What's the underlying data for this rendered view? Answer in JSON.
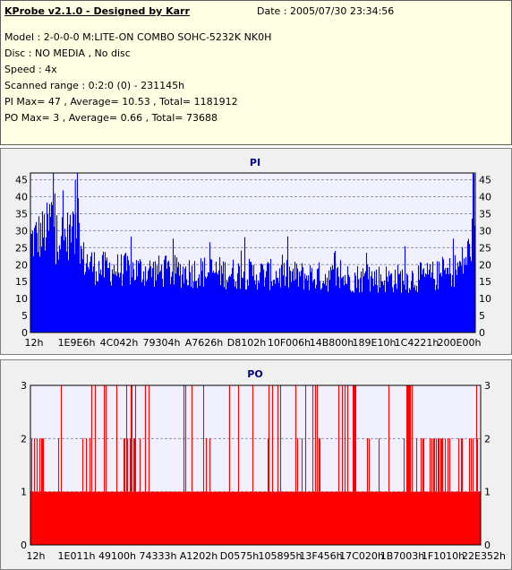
{
  "header": {
    "title": "KProbe v2.1.0 - Designed by Karr",
    "date": "Date : 2005/07/30 23:34:56",
    "lines": [
      "Model : 2-0-0-0 M:LITE-ON COMBO SOHC-5232K NK0H",
      "Disc : NO MEDIA , No disc",
      "Speed : 4x",
      "Scanned range : 0:2:0 (0) - 231145h",
      "PI Max= 47 , Average= 10.53 , Total= 1181912",
      "PO Max= 3 , Average= 0.66 , Total= 73688"
    ]
  },
  "colors": {
    "pi": "#0000ff",
    "po": "#ff0000",
    "plot_bg": "#f0f0ff",
    "panel_bg": "#f0f0f0",
    "info_bg": "#ffffe4"
  },
  "chart_data": [
    {
      "type": "bar",
      "title": "PI",
      "ylim": [
        0,
        47
      ],
      "yticks": [
        0,
        5,
        10,
        15,
        20,
        25,
        30,
        35,
        40,
        45
      ],
      "xticks": [
        "12h",
        "1E9E6h",
        "4C042h",
        "79304h",
        "A7626h",
        "D8102h",
        "10F006h",
        "14B800h",
        "189E10h",
        "1C4221h",
        "200E00h"
      ],
      "profile": [
        [
          0,
          27
        ],
        [
          2,
          28
        ],
        [
          5,
          29
        ],
        [
          8,
          31
        ],
        [
          10,
          37
        ],
        [
          11,
          18
        ],
        [
          12,
          30
        ],
        [
          15,
          28
        ],
        [
          18,
          30
        ],
        [
          19,
          33
        ],
        [
          20,
          29
        ],
        [
          21,
          36
        ],
        [
          23,
          22
        ],
        [
          30,
          19
        ],
        [
          45,
          18.5
        ],
        [
          60,
          18
        ],
        [
          80,
          18
        ],
        [
          90,
          17.5
        ],
        [
          110,
          17
        ],
        [
          130,
          16.5
        ],
        [
          150,
          16
        ],
        [
          170,
          16
        ],
        [
          185,
          17
        ],
        [
          192,
          19
        ],
        [
          196,
          22
        ],
        [
          198,
          27
        ],
        [
          200,
          30
        ]
      ],
      "max": 47,
      "average": 10.53
    },
    {
      "type": "bar",
      "title": "PO",
      "ylim": [
        0,
        3
      ],
      "yticks": [
        0,
        1,
        2,
        3
      ],
      "xticks": [
        "12h",
        "1E011h",
        "49100h",
        "74333h",
        "A1202h",
        "D0575h",
        "105895h",
        "13F456h",
        "17C020h",
        "1B7003h",
        "1F1010h",
        "22E352h"
      ],
      "max": 3,
      "average": 0.66
    }
  ]
}
